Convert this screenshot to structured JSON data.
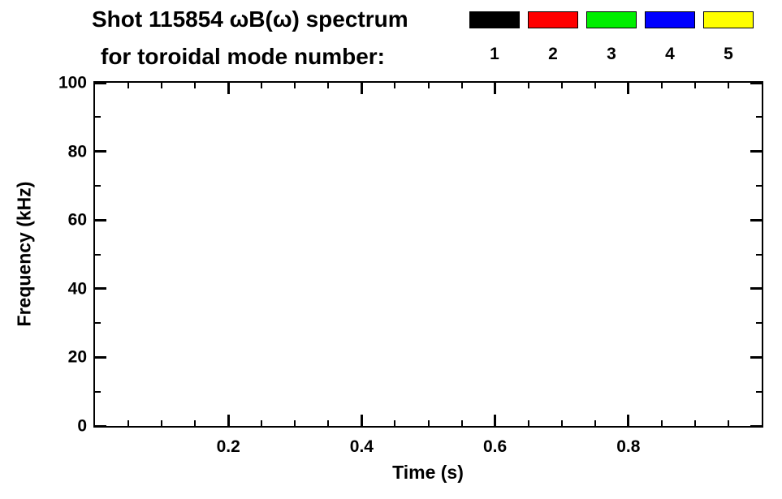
{
  "header": {
    "line1": "Shot 115854 ωB(ω) spectrum",
    "line2": "for toroidal mode number:"
  },
  "legend": {
    "entries": [
      {
        "label": "1",
        "color": "#000000"
      },
      {
        "label": "2",
        "color": "#ff0000"
      },
      {
        "label": "3",
        "color": "#00ee00"
      },
      {
        "label": "4",
        "color": "#0000ff"
      },
      {
        "label": "5",
        "color": "#ffff00"
      }
    ]
  },
  "chart_data": {
    "type": "line",
    "title": "Shot 115854 ωB(ω) spectrum",
    "subtitle": "for toroidal mode number:",
    "xlabel": "Time (s)",
    "ylabel": "Frequency (kHz)",
    "xlim": [
      0.0,
      1.0
    ],
    "ylim": [
      0,
      100
    ],
    "x_ticks": [
      {
        "value": 0.2,
        "label": "0.2"
      },
      {
        "value": 0.4,
        "label": "0.4"
      },
      {
        "value": 0.6,
        "label": "0.6"
      },
      {
        "value": 0.8,
        "label": "0.8"
      }
    ],
    "y_ticks": [
      {
        "value": 0,
        "label": "0"
      },
      {
        "value": 20,
        "label": "20"
      },
      {
        "value": 40,
        "label": "40"
      },
      {
        "value": 60,
        "label": "60"
      },
      {
        "value": 80,
        "label": "80"
      },
      {
        "value": 100,
        "label": "100"
      }
    ],
    "x_minor_interval": 0.05,
    "y_minor_interval": 10,
    "grid": false,
    "legend_position": "top",
    "series": [
      {
        "name": "1",
        "color": "#000000",
        "x": [],
        "y": []
      },
      {
        "name": "2",
        "color": "#ff0000",
        "x": [],
        "y": []
      },
      {
        "name": "3",
        "color": "#00ee00",
        "x": [],
        "y": []
      },
      {
        "name": "4",
        "color": "#0000ff",
        "x": [],
        "y": []
      },
      {
        "name": "5",
        "color": "#ffff00",
        "x": [],
        "y": []
      }
    ]
  }
}
